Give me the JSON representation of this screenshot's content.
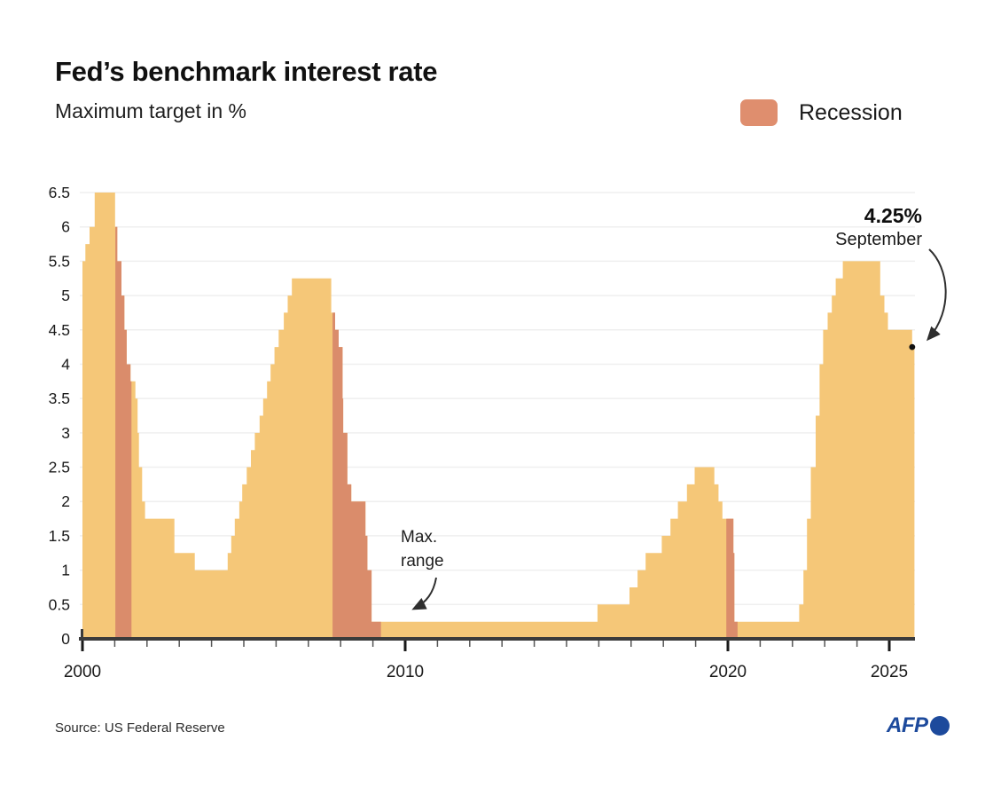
{
  "header": {
    "title": "Fed’s benchmark interest rate",
    "subtitle": "Maximum target in %"
  },
  "legend": {
    "label": "Recession",
    "swatch_color": "#DF8E6E"
  },
  "annotations": {
    "latest_value": "4.25%",
    "latest_month": "September",
    "max_range_line1": "Max.",
    "max_range_line2": "range"
  },
  "footer": {
    "source": "Source: US Federal Reserve",
    "logo": "AFP"
  },
  "colors": {
    "area": "#F5C778",
    "recession": "#DA8C6B",
    "grid": "#efefef",
    "axis": "#3b3b3b",
    "tick_minor": "#555555",
    "tick_major": "#1a1a1a",
    "dot": "#111111",
    "afp_blue": "#1d4a9c",
    "label_text": "#1a1a1a"
  },
  "chart_data": {
    "type": "area",
    "title": "Fed’s benchmark interest rate",
    "ylabel": "Maximum target in %",
    "legend": [
      "Recession"
    ],
    "grid": "horizontal",
    "xlim": [
      2000,
      2025.78
    ],
    "ylim": [
      0,
      6.5
    ],
    "y_ticks": [
      {
        "v": 0,
        "label": "0"
      },
      {
        "v": 0.5,
        "label": "0.5"
      },
      {
        "v": 1,
        "label": "1"
      },
      {
        "v": 1.5,
        "label": "1.5"
      },
      {
        "v": 2,
        "label": "2"
      },
      {
        "v": 2.5,
        "label": "2.5"
      },
      {
        "v": 3,
        "label": "3"
      },
      {
        "v": 3.5,
        "label": "3.5"
      },
      {
        "v": 4,
        "label": "4"
      },
      {
        "v": 4.5,
        "label": "4.5"
      },
      {
        "v": 5,
        "label": "5"
      },
      {
        "v": 5.5,
        "label": "5.5"
      },
      {
        "v": 6,
        "label": "6"
      },
      {
        "v": 6.5,
        "label": "6.5"
      }
    ],
    "x_minor_tick_years": [
      2000,
      2001,
      2002,
      2003,
      2004,
      2005,
      2006,
      2007,
      2008,
      2009,
      2010,
      2011,
      2012,
      2013,
      2014,
      2015,
      2016,
      2017,
      2018,
      2019,
      2020,
      2021,
      2022,
      2023,
      2024,
      2025
    ],
    "x_major_ticks": [
      {
        "v": 2000,
        "label": "2000"
      },
      {
        "v": 2010,
        "label": "2010"
      },
      {
        "v": 2020,
        "label": "2020"
      },
      {
        "v": 2025,
        "label": "2025"
      }
    ],
    "steps": [
      [
        2000.0,
        5.5
      ],
      [
        2000.09,
        5.75
      ],
      [
        2000.22,
        6.0
      ],
      [
        2000.38,
        6.5
      ],
      [
        2001.01,
        6.0
      ],
      [
        2001.08,
        5.5
      ],
      [
        2001.21,
        5.0
      ],
      [
        2001.3,
        4.5
      ],
      [
        2001.37,
        4.0
      ],
      [
        2001.49,
        3.75
      ],
      [
        2001.64,
        3.5
      ],
      [
        2001.71,
        3.0
      ],
      [
        2001.75,
        2.5
      ],
      [
        2001.85,
        2.0
      ],
      [
        2001.94,
        1.75
      ],
      [
        2002.85,
        1.25
      ],
      [
        2003.48,
        1.0
      ],
      [
        2004.5,
        1.25
      ],
      [
        2004.61,
        1.5
      ],
      [
        2004.72,
        1.75
      ],
      [
        2004.86,
        2.0
      ],
      [
        2004.95,
        2.25
      ],
      [
        2005.09,
        2.5
      ],
      [
        2005.22,
        2.75
      ],
      [
        2005.34,
        3.0
      ],
      [
        2005.49,
        3.25
      ],
      [
        2005.6,
        3.5
      ],
      [
        2005.72,
        3.75
      ],
      [
        2005.83,
        4.0
      ],
      [
        2005.95,
        4.25
      ],
      [
        2006.08,
        4.5
      ],
      [
        2006.24,
        4.75
      ],
      [
        2006.36,
        5.0
      ],
      [
        2006.49,
        5.25
      ],
      [
        2007.71,
        4.75
      ],
      [
        2007.83,
        4.5
      ],
      [
        2007.94,
        4.25
      ],
      [
        2008.06,
        3.5
      ],
      [
        2008.08,
        3.0
      ],
      [
        2008.21,
        2.25
      ],
      [
        2008.33,
        2.0
      ],
      [
        2008.77,
        1.5
      ],
      [
        2008.83,
        1.0
      ],
      [
        2008.96,
        0.25
      ],
      [
        2015.96,
        0.5
      ],
      [
        2016.95,
        0.75
      ],
      [
        2017.2,
        1.0
      ],
      [
        2017.45,
        1.25
      ],
      [
        2017.95,
        1.5
      ],
      [
        2018.22,
        1.75
      ],
      [
        2018.45,
        2.0
      ],
      [
        2018.73,
        2.25
      ],
      [
        2018.97,
        2.5
      ],
      [
        2019.58,
        2.25
      ],
      [
        2019.71,
        2.0
      ],
      [
        2019.83,
        1.75
      ],
      [
        2020.17,
        1.25
      ],
      [
        2020.2,
        0.25
      ],
      [
        2022.21,
        0.5
      ],
      [
        2022.34,
        1.0
      ],
      [
        2022.45,
        1.75
      ],
      [
        2022.57,
        2.5
      ],
      [
        2022.72,
        3.25
      ],
      [
        2022.84,
        4.0
      ],
      [
        2022.95,
        4.5
      ],
      [
        2023.09,
        4.75
      ],
      [
        2023.22,
        5.0
      ],
      [
        2023.34,
        5.25
      ],
      [
        2023.56,
        5.5
      ],
      [
        2024.72,
        5.0
      ],
      [
        2024.85,
        4.75
      ],
      [
        2024.96,
        4.5
      ],
      [
        2025.71,
        4.25
      ]
    ],
    "recessions": [
      [
        2001.02,
        2001.52
      ],
      [
        2007.75,
        2009.25
      ],
      [
        2019.95,
        2020.3
      ]
    ],
    "last_point": {
      "year": 2025.71,
      "value": 4.25,
      "label": "4.25%",
      "month": "September"
    }
  }
}
